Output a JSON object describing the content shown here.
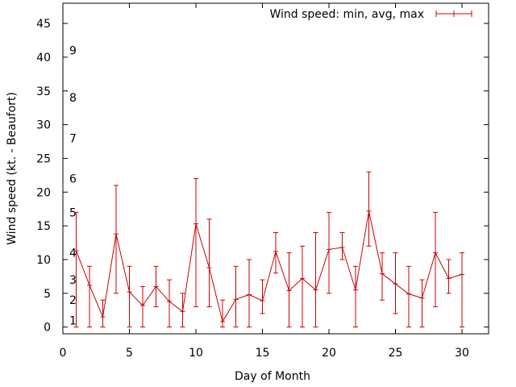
{
  "chart_data": {
    "type": "line",
    "title": "",
    "xlabel": "Day of Month",
    "ylabel": "Wind speed (kt. - Beaufort)",
    "xlim": [
      0,
      32
    ],
    "ylim": [
      -1,
      48
    ],
    "xticks": [
      0,
      5,
      10,
      15,
      20,
      25,
      30
    ],
    "yticks": [
      0,
      5,
      10,
      15,
      20,
      25,
      30,
      35,
      40,
      45
    ],
    "beaufort_labels": [
      {
        "label": "1",
        "y": 1
      },
      {
        "label": "2",
        "y": 4
      },
      {
        "label": "3",
        "y": 7
      },
      {
        "label": "4",
        "y": 11
      },
      {
        "label": "5",
        "y": 17
      },
      {
        "label": "6",
        "y": 22
      },
      {
        "label": "7",
        "y": 28
      },
      {
        "label": "8",
        "y": 34
      },
      {
        "label": "9",
        "y": 41
      }
    ],
    "series": [
      {
        "name": "Wind speed: min, avg, max",
        "color": "#cc0000",
        "x": [
          1,
          2,
          3,
          4,
          5,
          6,
          7,
          8,
          9,
          10,
          11,
          12,
          13,
          14,
          15,
          16,
          17,
          18,
          19,
          20,
          21,
          22,
          23,
          24,
          25,
          26,
          27,
          28,
          29,
          30
        ],
        "avg": [
          11.3,
          6.2,
          1.5,
          13.8,
          5.2,
          3.2,
          6.0,
          3.8,
          2.3,
          15.3,
          8.8,
          0.8,
          4.1,
          4.8,
          3.9,
          11.2,
          5.4,
          7.2,
          5.5,
          11.5,
          11.8,
          5.5,
          17.2,
          7.9,
          6.4,
          4.9,
          4.3,
          11.0,
          7.2,
          7.8
        ],
        "min": [
          0,
          0,
          0,
          5,
          0,
          0,
          3,
          0,
          0,
          3,
          3,
          0,
          0,
          0,
          2,
          8,
          0,
          0,
          0,
          5,
          10,
          0,
          12,
          4,
          2,
          0,
          0,
          3,
          5,
          0
        ],
        "max": [
          17,
          9,
          4,
          21,
          9,
          6,
          9,
          7,
          5,
          22,
          16,
          4,
          9,
          10,
          7,
          14,
          11,
          12,
          14,
          17,
          14,
          9,
          23,
          11,
          11,
          9,
          7,
          17,
          10,
          11
        ]
      }
    ]
  }
}
